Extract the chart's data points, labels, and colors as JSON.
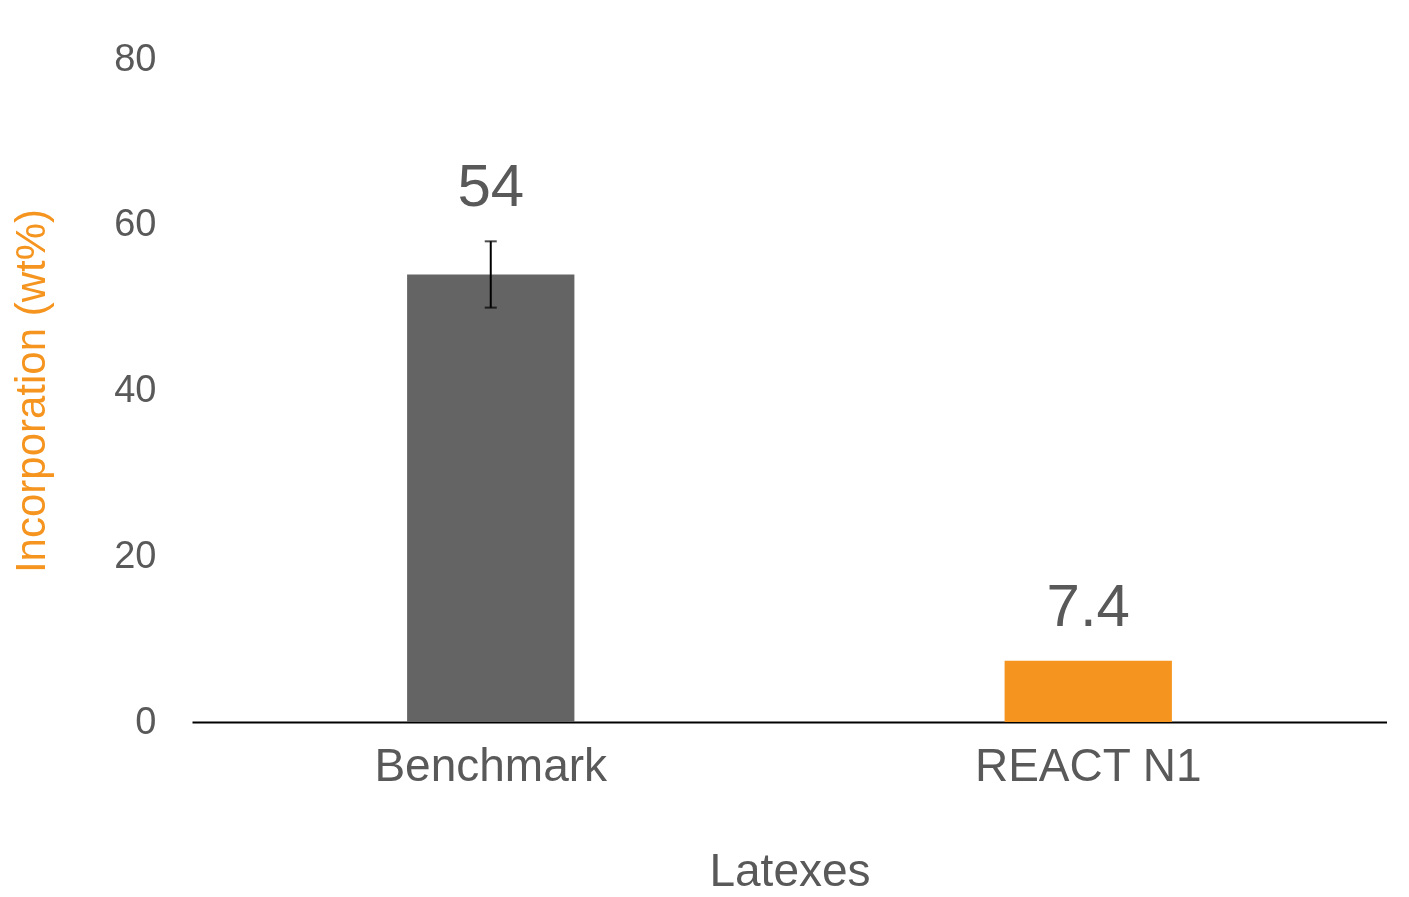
{
  "chart_data": {
    "type": "bar",
    "xlabel": "Latexes",
    "ylabel": "Incorporation (wt%)",
    "categories": [
      "Benchmark",
      "REACT N1"
    ],
    "values": [
      54,
      7.4
    ],
    "colors": [
      "#646464",
      "#f5951f"
    ],
    "errors": [
      4,
      null
    ],
    "data_labels": true,
    "ylim": [
      0,
      80
    ],
    "yticks": [
      0,
      20,
      40,
      60,
      80
    ],
    "grid": false
  }
}
